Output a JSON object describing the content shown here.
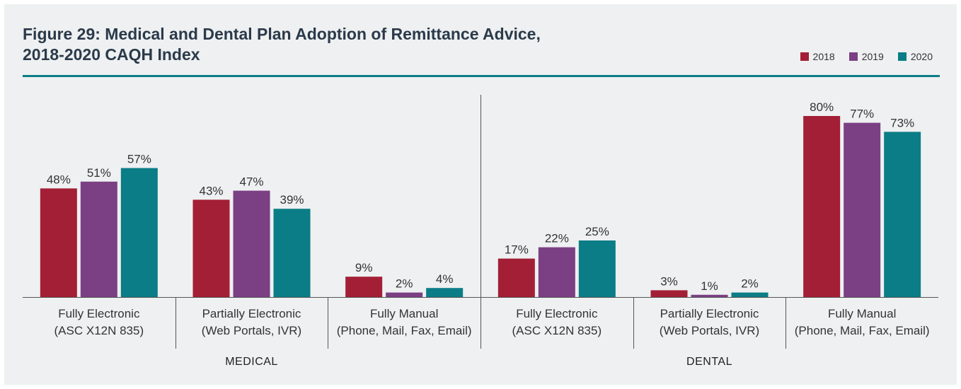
{
  "title": {
    "line1": "Figure 29: Medical and Dental Plan Adoption of Remittance Advice,",
    "line2": "2018-2020 CAQH Index"
  },
  "chart_data": {
    "type": "bar",
    "series": [
      {
        "name": "2018",
        "color": "#a31f36",
        "values": [
          48,
          43,
          9,
          17,
          3,
          80
        ]
      },
      {
        "name": "2019",
        "color": "#7b3f84",
        "values": [
          51,
          47,
          2,
          22,
          1,
          77
        ]
      },
      {
        "name": "2020",
        "color": "#0b7d86",
        "values": [
          57,
          39,
          4,
          25,
          2,
          73
        ]
      }
    ],
    "categories": [
      {
        "group": "MEDICAL",
        "line1": "Fully Electronic",
        "line2": "(ASC X12N 835)"
      },
      {
        "group": "MEDICAL",
        "line1": "Partially Electronic",
        "line2": "(Web Portals, IVR)"
      },
      {
        "group": "MEDICAL",
        "line1": "Fully Manual",
        "line2": "(Phone, Mail, Fax, Email)"
      },
      {
        "group": "DENTAL",
        "line1": "Fully Electronic",
        "line2": "(ASC X12N 835)"
      },
      {
        "group": "DENTAL",
        "line1": "Partially Electronic",
        "line2": "(Web Portals, IVR)"
      },
      {
        "group": "DENTAL",
        "line1": "Fully Manual",
        "line2": "(Phone, Mail, Fax, Email)"
      }
    ],
    "groups": [
      "MEDICAL",
      "DENTAL"
    ],
    "value_suffix": "%",
    "ylim": [
      0,
      100
    ],
    "legend_position": "top-right",
    "grid": false
  }
}
